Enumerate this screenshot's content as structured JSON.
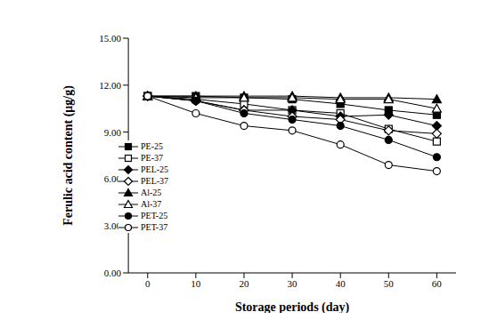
{
  "chart_data": {
    "type": "line",
    "x_label": "Storage periods (day)",
    "y_label": "Ferulic acid content (μg/g)",
    "x": [
      0,
      10,
      20,
      30,
      40,
      50,
      60
    ],
    "xlim": [
      -4,
      64
    ],
    "xticks": [
      0,
      10,
      20,
      30,
      40,
      50,
      60
    ],
    "ylim": [
      0,
      15
    ],
    "yticks": [
      {
        "value": 0,
        "label": "0.00"
      },
      {
        "value": 3,
        "label": "3.00"
      },
      {
        "value": 6,
        "label": "6.00"
      },
      {
        "value": 9,
        "label": "9.00"
      },
      {
        "value": 12,
        "label": "12.00"
      },
      {
        "value": 15,
        "label": "15.00"
      }
    ],
    "grid": false,
    "legend": "left",
    "series": [
      {
        "name": "PE-25",
        "color": "#000000",
        "marker": "filled-square",
        "values": [
          11.3,
          11.3,
          11.2,
          11.1,
          10.8,
          10.4,
          10.1
        ]
      },
      {
        "name": "PE-37",
        "color": "#000000",
        "marker": "open-square",
        "values": [
          11.3,
          11.1,
          10.8,
          10.4,
          10.2,
          9.2,
          8.4
        ]
      },
      {
        "name": "PEL-25",
        "color": "#000000",
        "marker": "filled-diamond",
        "values": [
          11.3,
          11.0,
          10.4,
          10.4,
          10.0,
          10.1,
          9.4
        ]
      },
      {
        "name": "PEL-37",
        "color": "#000000",
        "marker": "open-diamond",
        "values": [
          11.3,
          11.0,
          10.4,
          10.0,
          9.8,
          9.1,
          8.9
        ]
      },
      {
        "name": "Al-25",
        "color": "#000000",
        "marker": "filled-triangle",
        "values": [
          11.3,
          11.3,
          11.3,
          11.3,
          11.2,
          11.2,
          11.1
        ]
      },
      {
        "name": "Al-37",
        "color": "#000000",
        "marker": "open-triangle",
        "values": [
          11.3,
          11.2,
          11.2,
          11.2,
          11.1,
          11.1,
          10.5
        ]
      },
      {
        "name": "PET-25",
        "color": "#000000",
        "marker": "filled-circle",
        "values": [
          11.3,
          11.0,
          10.2,
          9.8,
          9.4,
          8.5,
          7.4
        ]
      },
      {
        "name": "PET-37",
        "color": "#000000",
        "marker": "open-circle",
        "values": [
          11.3,
          10.2,
          9.4,
          9.1,
          8.2,
          6.9,
          6.5
        ]
      }
    ]
  }
}
